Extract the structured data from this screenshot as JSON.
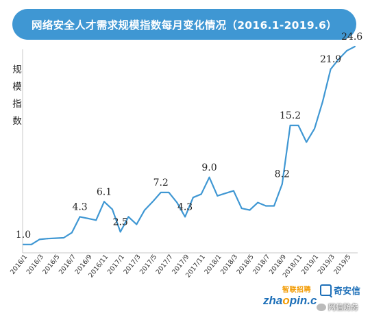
{
  "chart_data": {
    "type": "line",
    "title": "网络安全人才需求规模指数每月变化情况（2016.1-2019.6）",
    "ylabel": "规模指数",
    "xlabel": "",
    "series_color": "#3f97d3",
    "x_tick_labels": [
      "2016/1",
      "2016/3",
      "2016/5",
      "2016/7",
      "2016/9",
      "2016/11",
      "2017/1",
      "2017/3",
      "2017/5",
      "2017/7",
      "2017/9",
      "2017/11",
      "2018/1",
      "2018/3",
      "2018/5",
      "2018/7",
      "2018/9",
      "2018/11",
      "2019/1",
      "2019/3",
      "2019/5"
    ],
    "x": [
      "2016/1",
      "2016/2",
      "2016/3",
      "2016/4",
      "2016/5",
      "2016/6",
      "2016/7",
      "2016/8",
      "2016/9",
      "2016/10",
      "2016/11",
      "2016/12",
      "2017/1",
      "2017/2",
      "2017/3",
      "2017/4",
      "2017/5",
      "2017/6",
      "2017/7",
      "2017/8",
      "2017/9",
      "2017/10",
      "2017/11",
      "2017/12",
      "2018/1",
      "2018/2",
      "2018/3",
      "2018/4",
      "2018/5",
      "2018/6",
      "2018/7",
      "2018/8",
      "2018/9",
      "2018/10",
      "2018/11",
      "2018/12",
      "2019/1",
      "2019/2",
      "2019/3",
      "2019/4",
      "2019/5",
      "2019/6"
    ],
    "values": [
      1.0,
      1.0,
      1.6,
      1.7,
      1.75,
      1.8,
      2.4,
      4.3,
      4.1,
      3.9,
      6.1,
      5.2,
      2.5,
      4.3,
      3.4,
      5.1,
      6.1,
      7.2,
      7.2,
      6.0,
      4.3,
      6.6,
      7.0,
      9.0,
      6.8,
      7.1,
      7.4,
      5.3,
      5.1,
      6.0,
      5.6,
      5.6,
      8.2,
      15.2,
      15.2,
      13.2,
      14.8,
      18.0,
      21.9,
      23.1,
      24.1,
      24.6
    ],
    "data_labels": [
      {
        "index": 0,
        "text": "1.0"
      },
      {
        "index": 7,
        "text": "4.3"
      },
      {
        "index": 10,
        "text": "6.1"
      },
      {
        "index": 12,
        "text": "2.5"
      },
      {
        "index": 17,
        "text": "7.2"
      },
      {
        "index": 20,
        "text": "4.3"
      },
      {
        "index": 23,
        "text": "9.0"
      },
      {
        "index": 32,
        "text": "8.2"
      },
      {
        "index": 33,
        "text": "15.2"
      },
      {
        "index": 38,
        "text": "21.9"
      },
      {
        "index": 41,
        "text": "24.6"
      }
    ],
    "ylim": [
      0,
      25
    ],
    "grid": false,
    "legend": "none"
  },
  "ylabel_chars": [
    "规",
    "模",
    "指",
    "数"
  ],
  "brand": {
    "zhilian_top": "智联招聘",
    "zhilian_prefix": "zha",
    "zhilian_mid": "o",
    "zhilian_suffix": "pin.c",
    "qianxin": "奇安信",
    "wechat": "网信防务"
  }
}
